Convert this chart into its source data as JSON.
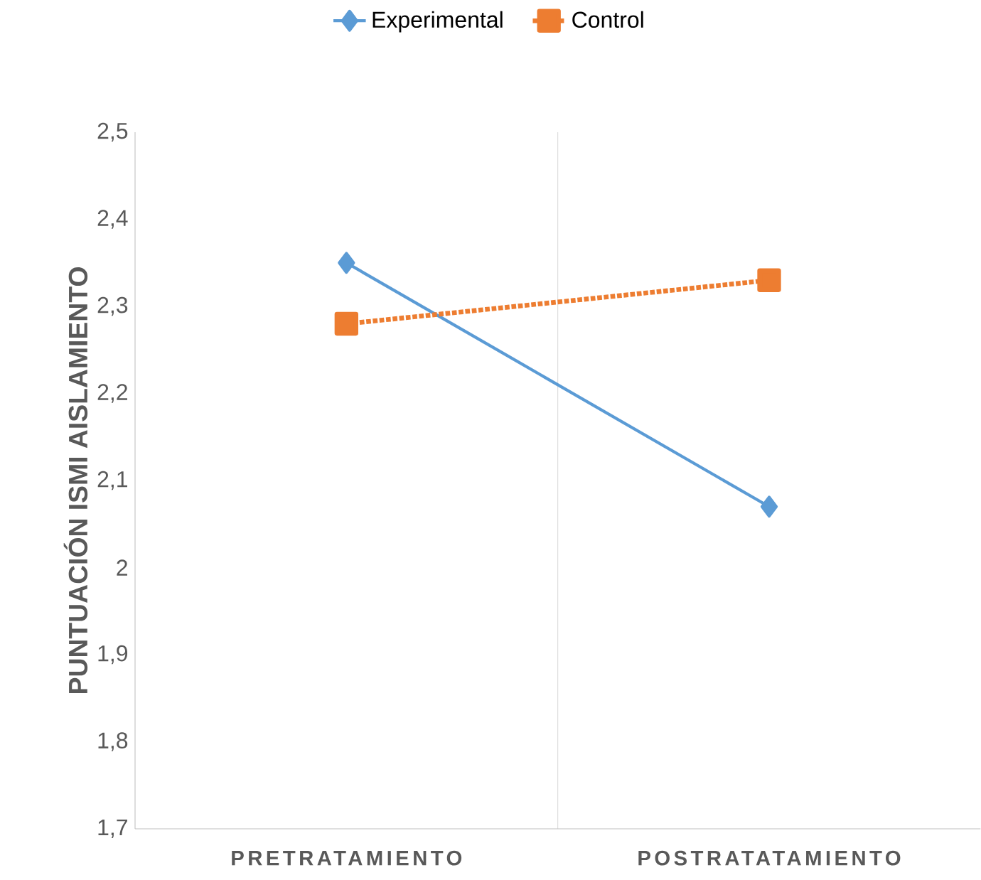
{
  "chart_data": {
    "type": "line",
    "ylabel": "PUNTUACIÓN ISMI AISLAMIENTO",
    "categories": [
      "PRETRATAMIENTO",
      "POSTRATATAMIENTO"
    ],
    "series": [
      {
        "name": "Experimental",
        "color": "#5b9bd5",
        "values": [
          2.35,
          2.07
        ],
        "marker": "diamond",
        "line_style": "solid"
      },
      {
        "name": "Control",
        "color": "#ed7d31",
        "values": [
          2.28,
          2.33
        ],
        "marker": "square",
        "line_style": "dotted"
      }
    ],
    "ylim": [
      1.7,
      2.5
    ],
    "yticks": [
      {
        "value": 1.7,
        "label": "1,7"
      },
      {
        "value": 1.8,
        "label": "1,8"
      },
      {
        "value": 1.9,
        "label": "1,9"
      },
      2,
      {
        "value": 2.1,
        "label": "2,1"
      },
      {
        "value": 2.2,
        "label": "2,2"
      },
      {
        "value": 2.3,
        "label": "2,3"
      },
      {
        "value": 2.4,
        "label": "2,4"
      },
      {
        "value": 2.5,
        "label": "2,5"
      }
    ],
    "grid": "x",
    "legend": "top"
  }
}
